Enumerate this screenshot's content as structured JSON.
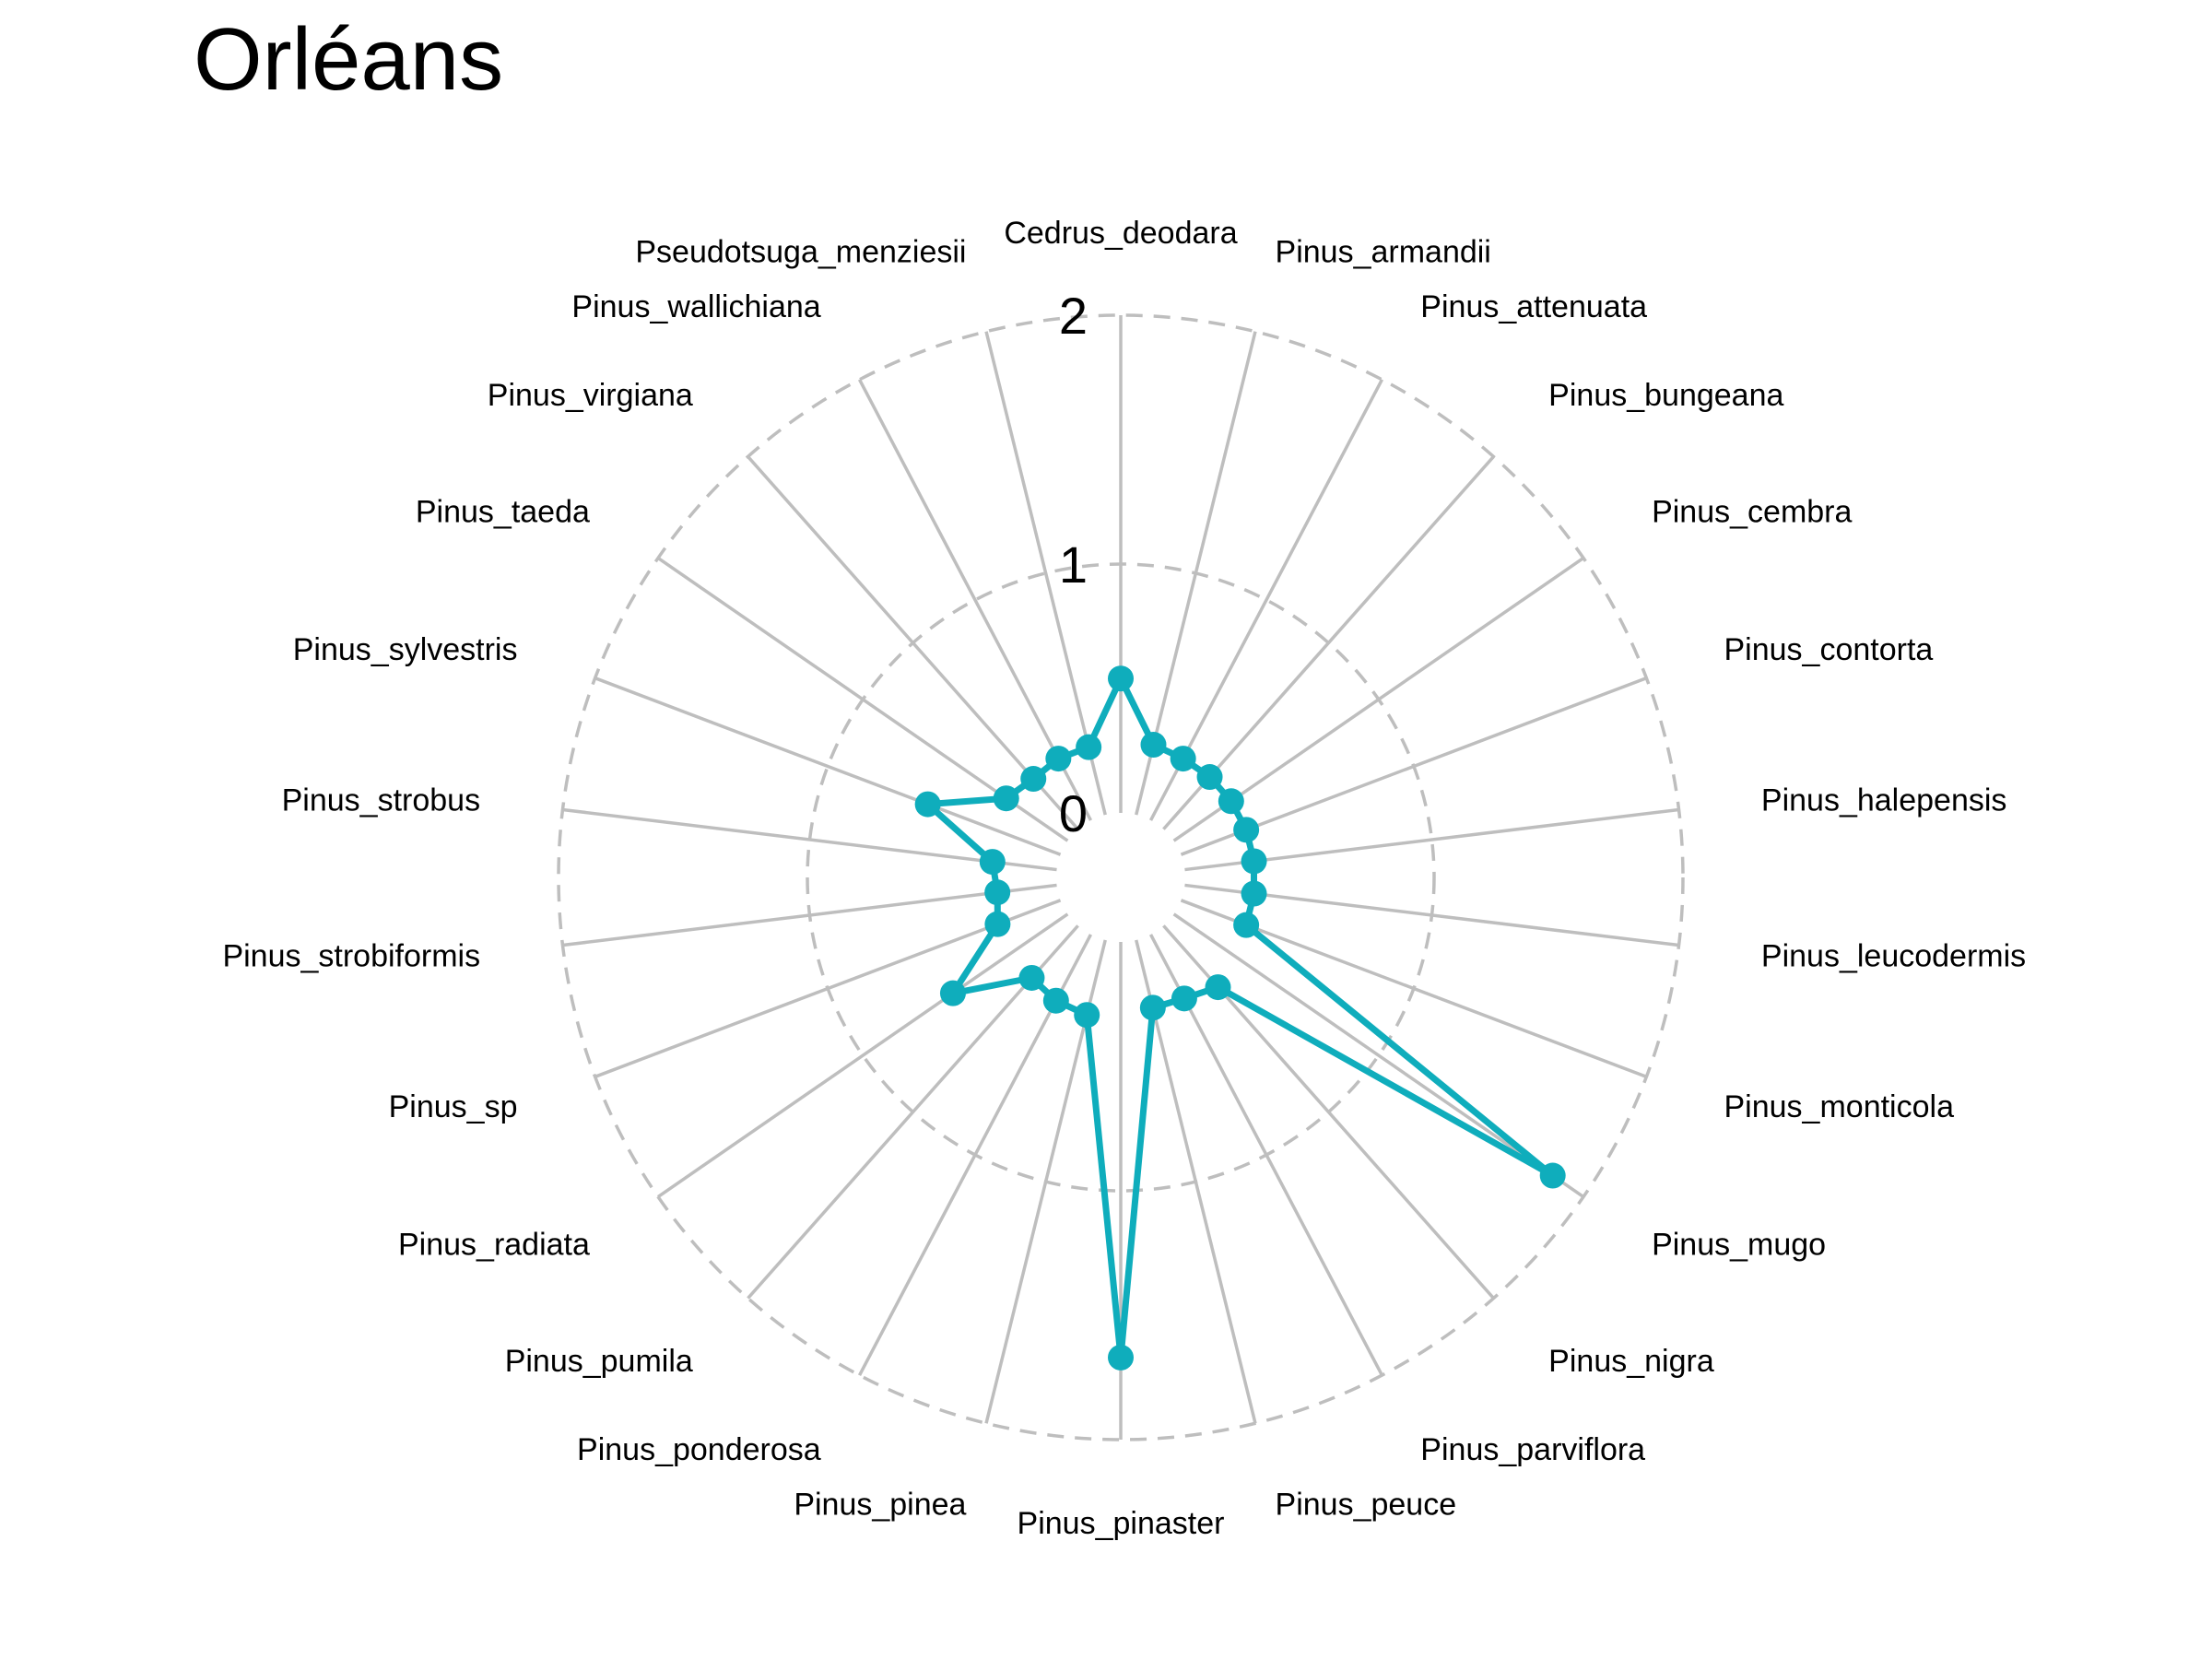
{
  "chart_data": {
    "type": "radar",
    "title": "Orléans",
    "categories": [
      "Cedrus_deodara",
      "Pinus_armandii",
      "Pinus_attenuata",
      "Pinus_bungeana",
      "Pinus_cembra",
      "Pinus_contorta",
      "Pinus_halepensis",
      "Pinus_leucodermis",
      "Pinus_monticola",
      "Pinus_mugo",
      "Pinus_nigra",
      "Pinus_parviflora",
      "Pinus_peuce",
      "Pinus_pinaster",
      "Pinus_pinea",
      "Pinus_ponderosa",
      "Pinus_pumila",
      "Pinus_radiata",
      "Pinus_sp",
      "Pinus_strobiformis",
      "Pinus_strobus",
      "Pinus_sylvestris",
      "Pinus_taeda",
      "Pinus_virgiana",
      "Pinus_wallichiana",
      "Pseudotsuga_menziesii"
    ],
    "series": [
      {
        "values": [
          0.54,
          0.29,
          0.28,
          0.28,
          0.28,
          0.28,
          0.28,
          0.28,
          0.28,
          1.85,
          0.33,
          0.29,
          0.28,
          1.67,
          0.31,
          0.3,
          0.28,
          0.56,
          0.27,
          0.24,
          0.26,
          0.57,
          0.3,
          0.27,
          0.28,
          0.28
        ],
        "color": "#0FADBC"
      }
    ],
    "radial_ticks": [
      "0",
      "1",
      "2"
    ],
    "rlim": [
      0,
      2
    ],
    "inner_ring_value": 0,
    "middle_ring_value": 1,
    "outer_ring_value": 2,
    "grid": true,
    "legend": "none",
    "colors": {
      "series": "#0FADBC",
      "grid": "#BEBEBE",
      "text": "#000000"
    }
  }
}
